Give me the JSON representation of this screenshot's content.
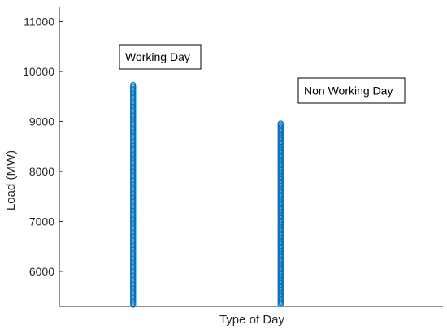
{
  "chart_data": {
    "type": "scatter",
    "xlabel": "Type of Day",
    "ylabel": "Load (MW)",
    "ylim": [
      5300,
      11300
    ],
    "yticks": [
      6000,
      7000,
      8000,
      9000,
      10000,
      11000
    ],
    "grid": false,
    "marker": "open-circle",
    "color": "#0072BD",
    "x": [
      1,
      2
    ],
    "xlim": [
      0.5,
      3.1
    ],
    "groups": [
      {
        "category": "Working Day",
        "x": 1,
        "y_min": 5330,
        "y_max": 9730
      },
      {
        "category": "Non Working Day",
        "x": 2,
        "y_min": 5330,
        "y_max": 8960
      }
    ],
    "annotations": [
      {
        "text": "Working Day",
        "group": 0
      },
      {
        "text": "Non Working Day",
        "group": 1
      }
    ]
  }
}
